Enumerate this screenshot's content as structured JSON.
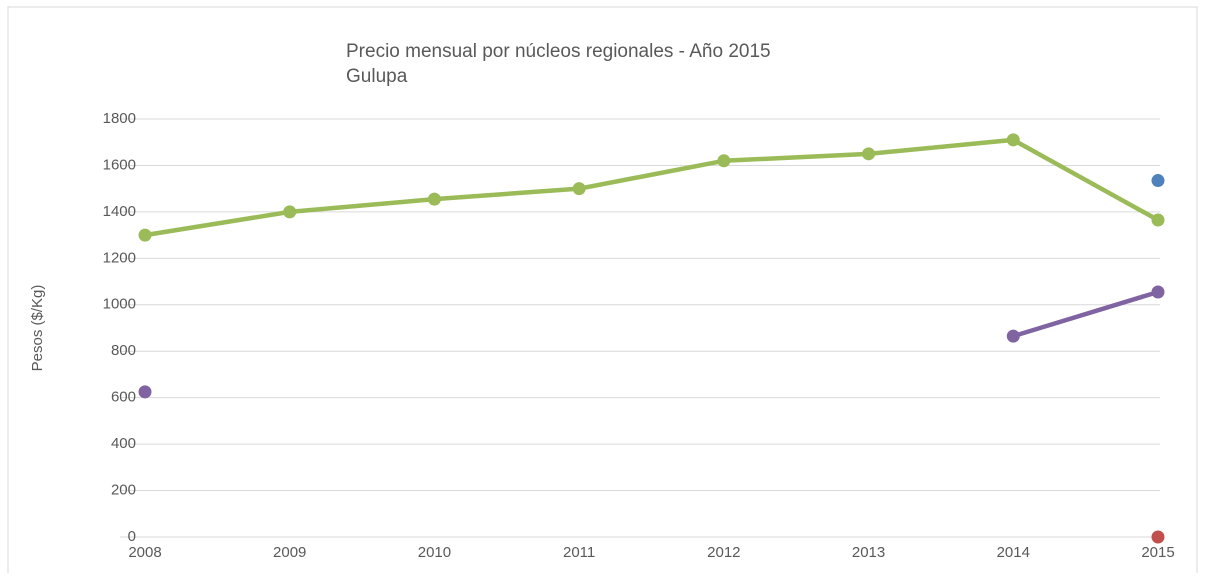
{
  "chart_data": {
    "type": "line",
    "title": "Precio mensual por núcleos regionales -  Año 2015",
    "subtitle": "Gulupa",
    "y_label": "Pesos ($/Kg)",
    "categories": [
      "2008",
      "2009",
      "2010",
      "2011",
      "2012",
      "2013",
      "2014",
      "2015"
    ],
    "series": [
      {
        "color": "#9bbb59",
        "values": [
          1300,
          1400,
          1455,
          1500,
          1620,
          1650,
          1710,
          1365
        ]
      },
      {
        "color": "#8064a2",
        "values": [
          625,
          null,
          null,
          null,
          null,
          null,
          865,
          1055
        ]
      },
      {
        "color": "#4f81bd",
        "values": [
          null,
          null,
          null,
          null,
          null,
          null,
          null,
          1535
        ]
      },
      {
        "color": "#c0504d",
        "values": [
          null,
          null,
          null,
          null,
          null,
          null,
          null,
          0
        ]
      }
    ],
    "ylim": [
      0,
      1800
    ],
    "yticks": [
      0,
      200,
      400,
      600,
      800,
      1000,
      1200,
      1400,
      1600,
      1800
    ],
    "grid": true
  }
}
